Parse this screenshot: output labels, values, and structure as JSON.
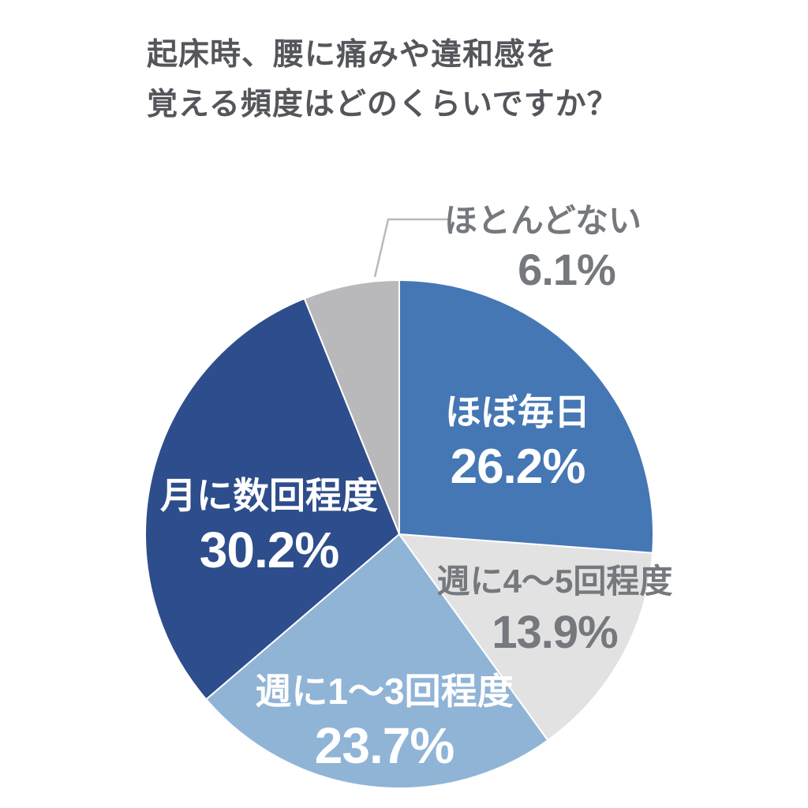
{
  "header": {
    "title_line1": "起床時、腰に痛みや違和感を",
    "title_line2": "覚える頻度はどのくらいですか？"
  },
  "chart_data": {
    "type": "pie",
    "title": "起床時、腰に痛みや違和感を覚える頻度はどのくらいですか？",
    "legend": "none",
    "start_angle_deg": 0,
    "direction": "clockwise",
    "separator_color": "#ffffff",
    "background_color": "#ffffff",
    "title_color": "#54565b",
    "outside_label_color": "#75787d",
    "leader_line_color": "#b9b9bb",
    "slices": [
      {
        "label": "ほぼ毎日",
        "value": 26.2,
        "display": "26.2%",
        "color": "#4577b4",
        "text_color": "#ffffff",
        "label_position": "inside"
      },
      {
        "label": "週に4〜5回程度",
        "value": 13.9,
        "display": "13.9%",
        "color": "#e2e2e3",
        "text_color": "#75787d",
        "label_position": "inside"
      },
      {
        "label": "週に1〜3回程度",
        "value": 23.7,
        "display": "23.7%",
        "color": "#90b4d6",
        "text_color": "#ffffff",
        "label_position": "inside"
      },
      {
        "label": "月に数回程度",
        "value": 30.2,
        "display": "30.2%",
        "color": "#2e4d8c",
        "text_color": "#ffffff",
        "label_position": "inside"
      },
      {
        "label": "ほとんどない",
        "value": 6.1,
        "display": "6.1%",
        "color": "#b9b9bb",
        "text_color": "#75787d",
        "label_position": "outside-callout"
      }
    ]
  }
}
